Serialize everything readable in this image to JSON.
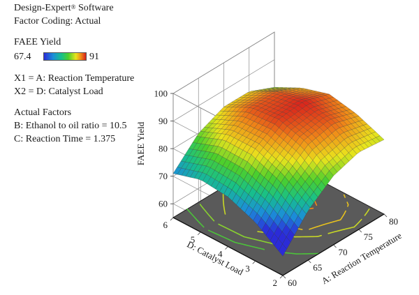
{
  "header": {
    "software_name": "Design-Expert",
    "software_mark": "®",
    "software_suffix": " Software",
    "factor_coding": "Factor Coding: Actual"
  },
  "legend": {
    "title": "FAEE Yield",
    "min": "67.4",
    "max": "91",
    "colors": [
      "#2b2bd8",
      "#1b8fd8",
      "#17c08a",
      "#4ccf2c",
      "#e9e41d",
      "#f08a18",
      "#d8201c"
    ]
  },
  "axes_info": {
    "x1": "X1 = A: Reaction Temperature",
    "x2": "X2 = D: Catalyst Load"
  },
  "actual_factors": {
    "title": "Actual Factors",
    "items": [
      "B: Ethanol to oil ratio = 10.5",
      "C: Reaction Time = 1.375"
    ]
  },
  "chart_data": {
    "type": "surface",
    "x_axis": {
      "label": "A: Reaction Temperature",
      "ticks": [
        60,
        65,
        70,
        75,
        80
      ],
      "range": [
        60,
        80
      ]
    },
    "y_axis": {
      "label": "D: Catalyst Load",
      "ticks": [
        2,
        3,
        4,
        5,
        6
      ],
      "range": [
        2,
        6
      ]
    },
    "z_axis": {
      "label": "FAEE Yield",
      "ticks": [
        60,
        70,
        80,
        90,
        100
      ],
      "range": [
        55,
        100
      ]
    },
    "surface": {
      "x": [
        60,
        65,
        70,
        75,
        80
      ],
      "y": [
        2,
        3,
        4,
        5,
        6
      ],
      "z": [
        [
          62,
          73,
          80,
          83,
          82
        ],
        [
          69,
          80,
          87,
          89,
          86
        ],
        [
          73,
          84,
          90,
          91,
          88
        ],
        [
          74,
          84,
          89,
          89,
          85
        ],
        [
          71,
          80,
          84,
          84,
          80
        ]
      ]
    },
    "z_min": 67.4,
    "z_max": 91,
    "floor_contours": true,
    "grid": true
  }
}
